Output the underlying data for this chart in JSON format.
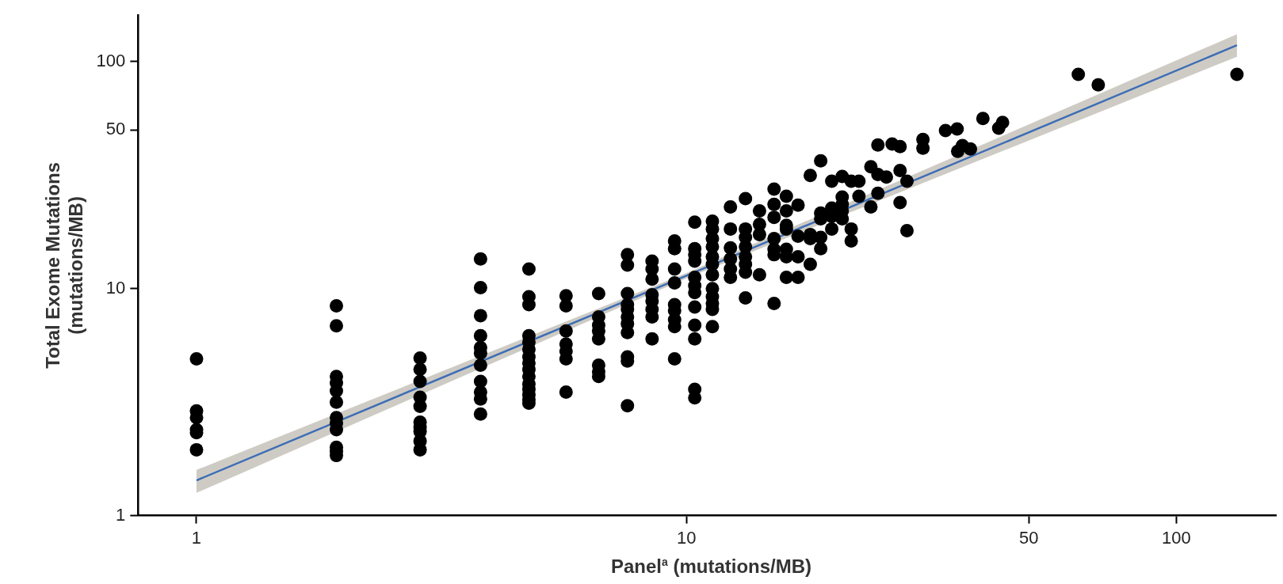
{
  "chart_data": {
    "type": "scatter",
    "xlabel": "Panel$^{a}$ (mutations/MB)",
    "ylabel": "Total Exome Mutations\n(mutations/MB)",
    "log": "xy",
    "grid": false,
    "legend": false,
    "xlim": [
      0.76,
      160
    ],
    "xticks": [
      1,
      10,
      50,
      100
    ],
    "ylim": [
      1,
      160
    ],
    "yticks": [
      1,
      10,
      50,
      100
    ],
    "series": [
      {
        "color": "#000000",
        "marker": "circle",
        "x": [
          1,
          1,
          1,
          1,
          1,
          1,
          1.93,
          1.93,
          1.93,
          1.93,
          1.93,
          1.93,
          1.93,
          1.93,
          1.93,
          1.93,
          1.93,
          1.93,
          2.86,
          2.86,
          2.86,
          2.86,
          2.86,
          2.86,
          2.86,
          2.86,
          2.86,
          2.86,
          3.8,
          3.8,
          3.8,
          3.8,
          3.8,
          3.8,
          3.8,
          3.8,
          3.8,
          3.8,
          3.8,
          4.77,
          4.77,
          4.77,
          4.77,
          4.77,
          4.77,
          4.77,
          4.77,
          4.77,
          4.77,
          4.77,
          4.77,
          4.77,
          4.77,
          4.77,
          5.68,
          5.68,
          5.68,
          5.68,
          5.68,
          5.68,
          5.68,
          6.62,
          6.62,
          6.62,
          6.62,
          6.62,
          6.62,
          6.62,
          6.62,
          7.58,
          7.58,
          7.58,
          7.58,
          7.58,
          7.58,
          7.58,
          7.58,
          7.58,
          7.58,
          7.58,
          8.51,
          8.51,
          8.51,
          8.51,
          8.51,
          8.51,
          8.51,
          8.51,
          9.46,
          9.46,
          9.46,
          9.46,
          9.46,
          9.46,
          9.46,
          9.46,
          9.46,
          10.4,
          10.4,
          10.4,
          10.4,
          10.4,
          10.4,
          10.4,
          10.4,
          10.4,
          10.4,
          10.4,
          10.4,
          11.3,
          11.3,
          11.3,
          11.3,
          11.3,
          11.3,
          11.3,
          11.3,
          11.3,
          11.3,
          11.3,
          11.3,
          12.3,
          12.3,
          12.3,
          12.3,
          12.3,
          12.3,
          13.2,
          13.2,
          13.2,
          13.2,
          13.2,
          13.2,
          13.2,
          13.2,
          14.1,
          14.1,
          14.1,
          14.1,
          15.1,
          15.1,
          15.1,
          15.1,
          15.1,
          15.1,
          15.1,
          16,
          16,
          16,
          16,
          16,
          16,
          16,
          16.9,
          16.9,
          16.9,
          16.9,
          17.9,
          17.9,
          17.9,
          17.9,
          18.8,
          18.8,
          18.8,
          18.8,
          18.8,
          19.8,
          19.8,
          19.8,
          19.8,
          20.8,
          20.8,
          20.8,
          20.8,
          20.8,
          21.7,
          21.7,
          21.7,
          22.5,
          22.5,
          23.8,
          23.8,
          24.6,
          24.6,
          24.6,
          25.6,
          26.3,
          27.3,
          27.3,
          27.3,
          28.2,
          28.2,
          30.4,
          30.4,
          33.8,
          35.7,
          35.8,
          36.6,
          38,
          40.3,
          43.4,
          44.2,
          63.1,
          69.3,
          133
        ],
        "values": [
          4.9,
          2.89,
          2.7,
          2.39,
          2.32,
          1.95,
          8.4,
          6.85,
          4.1,
          3.84,
          3.54,
          3.16,
          2.7,
          2.55,
          2.39,
          2.0,
          1.92,
          1.84,
          4.94,
          4.41,
          3.9,
          3.32,
          3.03,
          2.58,
          2.45,
          2.35,
          2.13,
          1.95,
          13.5,
          10.1,
          7.6,
          6.2,
          5.5,
          5.2,
          4.6,
          3.9,
          3.5,
          3.26,
          2.8,
          12.2,
          9.2,
          8.5,
          6.2,
          5.8,
          5.4,
          5.0,
          4.7,
          4.4,
          4.1,
          3.8,
          3.6,
          3.4,
          3.25,
          3.13,
          9.3,
          8.4,
          6.5,
          5.7,
          5.3,
          4.9,
          3.5,
          9.5,
          7.5,
          6.9,
          6.5,
          6.0,
          4.6,
          4.3,
          4.1,
          14.1,
          12.7,
          9.5,
          8.5,
          8.1,
          7.5,
          7.0,
          6.4,
          5.0,
          4.8,
          3.05,
          13.2,
          12.2,
          11.0,
          9.4,
          8.8,
          8.1,
          7.5,
          6.0,
          16.2,
          15.0,
          12.2,
          10.6,
          8.5,
          8.0,
          7.3,
          6.8,
          4.9,
          19.6,
          15.0,
          14.1,
          13.2,
          11.2,
          10.3,
          9.6,
          8.3,
          6.9,
          6.0,
          3.6,
          3.3,
          19.8,
          18.3,
          16.6,
          15.3,
          13.8,
          12.8,
          11.5,
          10.0,
          9.2,
          8.6,
          8.1,
          6.8,
          22.9,
          18.3,
          15.1,
          13.5,
          12.2,
          11.2,
          24.9,
          18.3,
          16.8,
          15.3,
          13.8,
          12.8,
          11.8,
          9.1,
          22.0,
          19.2,
          17.3,
          11.5,
          27.4,
          23.5,
          20.6,
          16.6,
          14.9,
          14.1,
          8.6,
          25.5,
          22,
          19.0,
          18.3,
          14.9,
          13.8,
          11.2,
          23.3,
          17,
          13.8,
          11.2,
          31.5,
          17.3,
          16.6,
          12.8,
          36.5,
          21.5,
          20.3,
          16.8,
          15.0,
          29.7,
          22.6,
          20.8,
          18.3,
          31.2,
          25.3,
          23.5,
          22,
          20.3,
          29.7,
          18.3,
          16.2,
          29.7,
          25.5,
          34.4,
          22.9,
          42.9,
          31.8,
          26.3,
          31.0,
          43.3,
          42.2,
          33.1,
          23.9,
          29.7,
          18.0,
          45.4,
          41.5,
          49.7,
          50.5,
          40.2,
          42.6,
          41.2,
          56.1,
          50.9,
          53.9,
          87.8,
          79.0,
          87.8
        ]
      },
      {
        "type": "line",
        "marker": "none",
        "color": "#3d6db5",
        "x": [
          1,
          10,
          133
        ],
        "values": [
          1.43,
          11.4,
          118
        ],
        "lower": [
          1.26,
          11.1,
          105
        ],
        "upper": [
          1.59,
          11.7,
          132
        ]
      }
    ]
  }
}
